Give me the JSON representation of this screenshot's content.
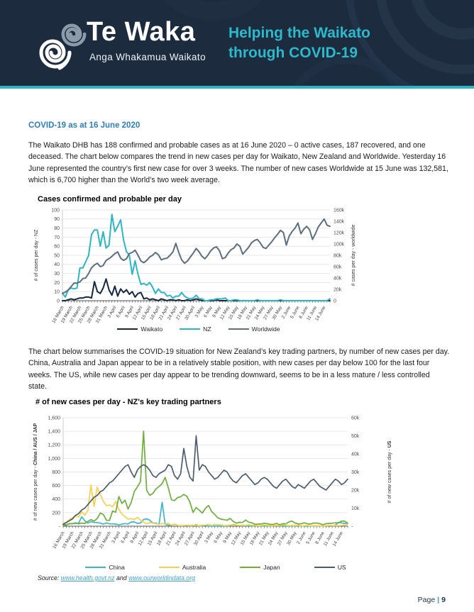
{
  "banner": {
    "logo_title": "Te Waka",
    "logo_subtitle": "Anga Whakamua Waikato",
    "tagline_line1": "Helping the Waikato",
    "tagline_line2": "through COVID-19",
    "colors": {
      "background": "#1C2B3D",
      "accent": "#2BB4C2",
      "tagline": "#2BB9CB"
    }
  },
  "article": {
    "heading": "COVID-19 as at 16 June 2020",
    "paragraph1": "The Waikato DHB has 188 confirmed and probable cases as at 16 June 2020 – 0 active cases, 187 recovered, and one deceased.  The chart below compares the trend in new cases per day for Waikato, New Zealand and Worldwide. Yesterday 16 June represented the country’s first new case for over 3 weeks. The number of new cases Worldwide at 15 June was 132,581, which is 6,700 higher than the World’s two week average.",
    "paragraph2": "The chart below summarises the COVID-19 situation for New Zealand’s key trading partners, by number of new cases per day. China, Australia and Japan appear to be in a relatively stable position, with new cases per day below 100 for the last four weeks. The US, while new cases per day appear to be trending downward, seems to be in a less mature / less controlled state."
  },
  "source_line": {
    "prefix": "Source: ",
    "link1": "www.health.govt.nz",
    "middle": " and ",
    "link2": "www.ourworldindata.org"
  },
  "footer": {
    "page_word": "Page",
    "separator": "|",
    "page_number": "9"
  },
  "chart_data": [
    {
      "type": "line",
      "title": "Cases confirmed and probable per day",
      "ylabel_left": "# of cases per day - NZ",
      "ylabel_left_bold": "",
      "ylabel_right": "# cases per day - worldwide",
      "ylabel_right_bold": "",
      "ylim_left": [
        0,
        100
      ],
      "ylim_right": [
        0,
        160000
      ],
      "yticks_left": [
        "0",
        "10",
        "20",
        "30",
        "40",
        "50",
        "60",
        "70",
        "80",
        "90",
        "100"
      ],
      "yticks_right": [
        "0",
        "20k",
        "40k",
        "60k",
        "80k",
        "100k",
        "120k",
        "140k",
        "160k"
      ],
      "x_start": "16 March 2020",
      "x_end": "16 June 2020",
      "x_label_every": 3,
      "grid": true,
      "legend_position": "bottom",
      "x_tick_labels": [
        "16 March",
        "19 March",
        "22 March",
        "25 March",
        "28 March",
        "31 March",
        "3 April",
        "6 April",
        "9 April",
        "12 April",
        "15 April",
        "18 April",
        "21 April",
        "24 April",
        "27 April",
        "30 April",
        "3 May",
        "6 May",
        "9 May",
        "12 May",
        "15 May",
        "18 May",
        "21 May",
        "24 May",
        "27 May",
        "30 May",
        "2 June",
        "5 June",
        "8 June",
        "11 June",
        "14 June"
      ],
      "series": [
        {
          "name": "Waikato",
          "axis": "left",
          "color": "#16283E",
          "values": [
            0,
            0,
            1,
            2,
            1,
            2,
            3,
            3,
            4,
            4,
            3,
            21,
            10,
            8,
            14,
            24,
            12,
            6,
            16,
            5,
            13,
            9,
            12,
            7,
            10,
            4,
            8,
            9,
            2,
            3,
            1,
            2,
            1,
            0,
            2,
            1,
            0,
            1,
            1,
            0,
            1,
            0,
            0,
            1,
            0,
            1,
            2,
            1,
            0,
            0,
            0,
            0,
            0,
            1,
            0,
            0,
            0,
            0,
            0,
            0,
            0,
            0,
            0,
            0,
            0,
            0,
            0,
            0,
            0,
            0,
            0,
            0,
            0,
            0,
            0,
            0,
            0,
            0,
            0,
            0,
            0,
            0,
            0,
            0,
            0,
            0,
            0,
            0,
            0,
            0,
            0,
            0,
            0
          ]
        },
        {
          "name": "NZ",
          "axis": "left",
          "color": "#2CB7C4",
          "values": [
            8,
            4,
            12,
            14,
            13,
            14,
            36,
            36,
            43,
            50,
            73,
            78,
            78,
            60,
            76,
            58,
            61,
            95,
            76,
            82,
            89,
            67,
            54,
            50,
            29,
            44,
            29,
            18,
            19,
            17,
            20,
            15,
            8,
            13,
            9,
            9,
            5,
            6,
            3,
            5,
            5,
            9,
            5,
            3,
            2,
            3,
            6,
            2,
            2,
            0,
            0,
            1,
            1,
            2,
            2,
            2,
            3,
            0,
            0,
            1,
            1,
            0,
            0,
            0,
            0,
            0,
            0,
            1,
            0,
            0,
            0,
            0,
            0,
            0,
            0,
            1,
            0,
            0,
            0,
            0,
            0,
            0,
            0,
            0,
            0,
            0,
            0,
            0,
            0,
            0,
            0,
            0,
            2
          ]
        },
        {
          "name": "Worldwide",
          "axis": "right",
          "color": "#5F6E7E",
          "values": [
            13000,
            15000,
            19000,
            25000,
            31000,
            31000,
            33000,
            39000,
            40000,
            48000,
            58000,
            63000,
            66000,
            60000,
            62000,
            71000,
            74000,
            78000,
            83000,
            86000,
            75000,
            71000,
            74000,
            83000,
            85000,
            89000,
            80000,
            70000,
            67000,
            71000,
            77000,
            80000,
            85000,
            81000,
            72000,
            74000,
            75000,
            80000,
            86000,
            101000,
            85000,
            72000,
            66000,
            70000,
            77000,
            84000,
            92000,
            86000,
            78000,
            74000,
            80000,
            88000,
            93000,
            95000,
            88000,
            74000,
            76000,
            84000,
            90000,
            93000,
            100000,
            96000,
            82000,
            88000,
            94000,
            102000,
            106000,
            108000,
            102000,
            94000,
            92000,
            98000,
            104000,
            111000,
            117000,
            124000,
            120000,
            98000,
            114000,
            122000,
            128000,
            137000,
            118000,
            126000,
            131000,
            125000,
            108000,
            118000,
            130000,
            137000,
            144000,
            133000,
            131000
          ]
        }
      ]
    },
    {
      "type": "line",
      "title": "# of new cases per day - NZ's key trading partners",
      "ylabel_left": "# of new cases per day - ",
      "ylabel_left_bold": "China / AUS / JAP",
      "ylabel_right": "# of new cases per day - ",
      "ylabel_right_bold": "US",
      "ylim_left": [
        0,
        1600
      ],
      "ylim_right": [
        0,
        60000
      ],
      "yticks_left": [
        "-",
        "200",
        "400",
        "600",
        "800",
        "1,000",
        "1,200",
        "1,400",
        "1,600"
      ],
      "yticks_right": [
        "-",
        "10k",
        "20k",
        "30k",
        "40k",
        "50k",
        "60k"
      ],
      "x_start": "16 March 2020",
      "x_end": "16 June 2020",
      "x_label_every": 3,
      "grid": true,
      "legend_position": "bottom",
      "x_tick_labels": [
        "16 March",
        "19 March",
        "22 March",
        "25 March",
        "28 March",
        "31 March",
        "3 April",
        "6 April",
        "9 April",
        "12 April",
        "15 April",
        "18 April",
        "21 April",
        "24 April",
        "27 April",
        "30 April",
        "3 May",
        "6 May",
        "9 May",
        "12 May",
        "15 May",
        "18 May",
        "21 May",
        "24 May",
        "27 May",
        "30 May",
        "2 June",
        "5 June",
        "8 June",
        "11 June",
        "14 June"
      ],
      "series": [
        {
          "name": "China",
          "axis": "left",
          "color": "#3BB7CE",
          "values": [
            29,
            21,
            34,
            39,
            41,
            46,
            140,
            78,
            47,
            67,
            55,
            54,
            45,
            31,
            48,
            36,
            35,
            31,
            19,
            30,
            39,
            32,
            62,
            63,
            42,
            46,
            99,
            108,
            89,
            46,
            46,
            26,
            352,
            27,
            16,
            12,
            30,
            10,
            6,
            12,
            11,
            3,
            6,
            22,
            4,
            4,
            12,
            1,
            2,
            3,
            1,
            2,
            1,
            1,
            14,
            20,
            17,
            7,
            15,
            3,
            8,
            5,
            7,
            6,
            5,
            5,
            2,
            4,
            3,
            11,
            7,
            1,
            1,
            2,
            4,
            2,
            16,
            5,
            1,
            1,
            5,
            3,
            6,
            4,
            4,
            3,
            11,
            7,
            11,
            57,
            49,
            40,
            44
          ]
        },
        {
          "name": "Australia",
          "axis": "left",
          "color": "#FBD04A",
          "values": [
            41,
            59,
            95,
            126,
            153,
            134,
            213,
            161,
            235,
            611,
            289,
            577,
            469,
            365,
            304,
            313,
            283,
            365,
            250,
            181,
            139,
            104,
            112,
            96,
            130,
            90,
            60,
            36,
            51,
            45,
            36,
            29,
            43,
            29,
            45,
            13,
            26,
            10,
            9,
            9,
            16,
            12,
            16,
            11,
            9,
            16,
            18,
            26,
            12,
            27,
            22,
            21,
            8,
            11,
            17,
            12,
            16,
            14,
            8,
            14,
            21,
            15,
            12,
            8,
            10,
            18,
            12,
            9,
            10,
            11,
            8,
            21,
            14,
            9,
            10,
            12,
            8,
            5,
            8,
            11,
            7,
            9,
            6,
            8,
            5,
            9,
            12,
            8,
            7,
            9,
            11,
            18,
            22
          ]
        },
        {
          "name": "Japan",
          "axis": "left",
          "color": "#6FAF3A",
          "values": [
            15,
            15,
            40,
            36,
            49,
            34,
            47,
            39,
            71,
            96,
            75,
            112,
            194,
            173,
            87,
            87,
            225,
            206,
            437,
            336,
            383,
            252,
            351,
            511,
            579,
            658,
            1401,
            530,
            455,
            482,
            549,
            585,
            628,
            721,
            566,
            390,
            377,
            423,
            434,
            469,
            441,
            353,
            203,
            276,
            236,
            193,
            263,
            305,
            218,
            174,
            123,
            105,
            96,
            88,
            115,
            70,
            45,
            57,
            55,
            91,
            60,
            51,
            27,
            31,
            32,
            42,
            37,
            26,
            26,
            42,
            21,
            37,
            34,
            63,
            75,
            47,
            35,
            37,
            50,
            34,
            31,
            46,
            46,
            38,
            21,
            38,
            41,
            44,
            50,
            47,
            75,
            74,
            45
          ]
        },
        {
          "name": "US",
          "axis": "right",
          "color": "#4E5D6E",
          "values": [
            1000,
            2000,
            3000,
            4000,
            6000,
            7000,
            9000,
            10000,
            12000,
            14000,
            16000,
            17000,
            19000,
            20000,
            22000,
            24000,
            25000,
            27000,
            29000,
            31000,
            33000,
            34000,
            30000,
            27000,
            31000,
            33000,
            34000,
            33000,
            31000,
            28000,
            27000,
            29000,
            30000,
            31000,
            34000,
            33000,
            28000,
            26000,
            29000,
            43000,
            33000,
            27000,
            25000,
            50000,
            31000,
            34000,
            33000,
            30000,
            28000,
            26000,
            27000,
            29000,
            31000,
            30000,
            27000,
            25000,
            24000,
            26000,
            28000,
            29000,
            27000,
            25000,
            23000,
            24000,
            26000,
            27000,
            26000,
            24000,
            22000,
            21000,
            23000,
            25000,
            26000,
            24000,
            22000,
            21000,
            23000,
            22000,
            21000,
            23000,
            25000,
            26000,
            24000,
            22000,
            21000,
            20000,
            22000,
            24000,
            26000,
            25000,
            23000,
            24000,
            26000
          ]
        }
      ]
    }
  ]
}
